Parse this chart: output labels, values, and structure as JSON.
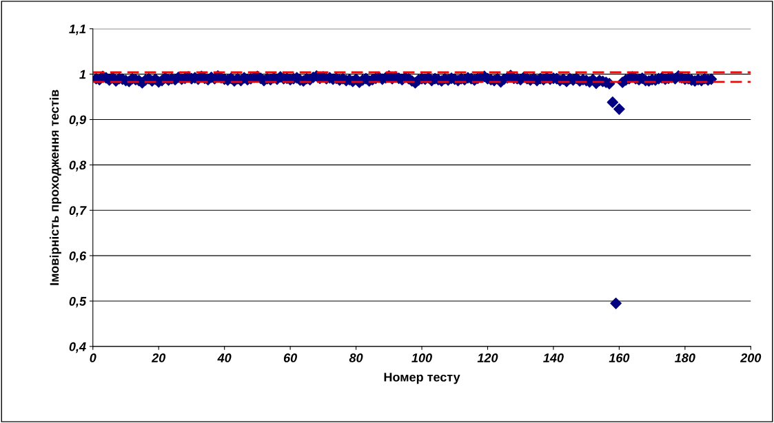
{
  "chart_data": {
    "type": "scatter",
    "xlabel": "Номер тесту",
    "ylabel": "Імовірність проходження тестів",
    "x": [
      1,
      2,
      3,
      4,
      5,
      6,
      7,
      8,
      9,
      10,
      11,
      12,
      13,
      14,
      15,
      16,
      17,
      18,
      19,
      20,
      21,
      22,
      23,
      24,
      25,
      26,
      27,
      28,
      29,
      30,
      31,
      32,
      33,
      34,
      35,
      36,
      37,
      38,
      39,
      40,
      41,
      42,
      43,
      44,
      45,
      46,
      47,
      48,
      49,
      50,
      51,
      52,
      53,
      54,
      55,
      56,
      57,
      58,
      59,
      60,
      61,
      62,
      63,
      64,
      65,
      66,
      67,
      68,
      69,
      70,
      71,
      72,
      73,
      74,
      75,
      76,
      77,
      78,
      79,
      80,
      81,
      82,
      83,
      84,
      85,
      86,
      87,
      88,
      89,
      90,
      91,
      92,
      93,
      94,
      95,
      96,
      97,
      98,
      99,
      100,
      101,
      102,
      103,
      104,
      105,
      106,
      107,
      108,
      109,
      110,
      111,
      112,
      113,
      114,
      115,
      116,
      117,
      118,
      119,
      120,
      121,
      122,
      123,
      124,
      125,
      126,
      127,
      128,
      129,
      130,
      131,
      132,
      133,
      134,
      135,
      136,
      137,
      138,
      139,
      140,
      141,
      142,
      143,
      144,
      145,
      146,
      147,
      148,
      149,
      150,
      151,
      152,
      153,
      154,
      155,
      156,
      157,
      158,
      159,
      160,
      161,
      162,
      163,
      164,
      165,
      166,
      167,
      168,
      169,
      170,
      171,
      172,
      173,
      174,
      175,
      176,
      177,
      178,
      179,
      180,
      181,
      182,
      183,
      184,
      185,
      186,
      187,
      188
    ],
    "series": [
      {
        "color": "#000080",
        "values": [
          0.99,
          0.988,
          0.995,
          0.992,
          0.987,
          0.993,
          0.985,
          0.99,
          0.989,
          0.986,
          0.984,
          0.99,
          0.988,
          0.986,
          0.981,
          0.987,
          0.99,
          0.985,
          0.989,
          0.983,
          0.986,
          0.992,
          0.987,
          0.99,
          0.988,
          0.993,
          0.989,
          0.991,
          0.994,
          0.99,
          0.992,
          0.989,
          0.995,
          0.991,
          0.988,
          0.993,
          0.99,
          0.996,
          0.992,
          0.989,
          0.987,
          0.991,
          0.985,
          0.99,
          0.986,
          0.992,
          0.988,
          0.99,
          0.993,
          0.995,
          0.991,
          0.986,
          0.99,
          0.988,
          0.992,
          0.989,
          0.994,
          0.99,
          0.991,
          0.988,
          0.99,
          0.992,
          0.987,
          0.985,
          0.99,
          0.988,
          0.993,
          0.996,
          0.991,
          0.994,
          0.99,
          0.992,
          0.989,
          0.991,
          0.987,
          0.99,
          0.986,
          0.988,
          0.984,
          0.989,
          0.982,
          0.987,
          0.99,
          0.985,
          0.988,
          0.991,
          0.993,
          0.989,
          0.992,
          0.996,
          0.99,
          0.994,
          0.991,
          0.988,
          0.993,
          0.99,
          0.985,
          0.981,
          0.987,
          0.99,
          0.989,
          0.992,
          0.986,
          0.99,
          0.988,
          0.985,
          0.99,
          0.987,
          0.991,
          0.989,
          0.986,
          0.99,
          0.988,
          0.992,
          0.99,
          0.987,
          0.991,
          0.993,
          0.995,
          0.99,
          0.988,
          0.986,
          0.99,
          0.983,
          0.989,
          0.992,
          0.997,
          0.991,
          0.99,
          0.988,
          0.993,
          0.99,
          0.987,
          0.991,
          0.986,
          0.99,
          0.988,
          0.992,
          0.989,
          0.991,
          0.99,
          0.986,
          0.989,
          0.984,
          0.99,
          0.987,
          0.991,
          0.985,
          0.988,
          0.986,
          0.983,
          0.988,
          0.98,
          0.986,
          0.984,
          0.982,
          0.979,
          0.938,
          0.495,
          0.923,
          0.982,
          0.987,
          0.99,
          0.994,
          0.99,
          0.988,
          0.991,
          0.986,
          0.985,
          0.988,
          0.987,
          0.99,
          0.992,
          0.989,
          0.991,
          0.993,
          0.99,
          0.996,
          0.992,
          0.989,
          0.99,
          0.987,
          0.985,
          0.988,
          0.986,
          0.99,
          0.987,
          0.989
        ]
      }
    ],
    "marker": "diamond",
    "grid": "y",
    "xlim": [
      0,
      200
    ],
    "xticks": [
      0,
      20,
      40,
      60,
      80,
      100,
      120,
      140,
      160,
      180,
      200
    ],
    "ylim": [
      0.4,
      1.1
    ],
    "yticks": [
      {
        "value": 0.4,
        "label": "0,4"
      },
      {
        "value": 0.5,
        "label": "0,5"
      },
      {
        "value": 0.6,
        "label": "0,6"
      },
      {
        "value": 0.7,
        "label": "0,7"
      },
      {
        "value": 0.8,
        "label": "0,8"
      },
      {
        "value": 0.9,
        "label": "0,9"
      },
      {
        "value": 1,
        "label": "1"
      },
      {
        "value": 1.1,
        "label": "1,1"
      }
    ],
    "ref_lines": [
      {
        "axis": "y",
        "value": 1.004,
        "color": "#ff0000",
        "line_style": "dashed"
      },
      {
        "axis": "y",
        "value": 0.983,
        "color": "#ff0000",
        "line_style": "dashed"
      }
    ]
  }
}
